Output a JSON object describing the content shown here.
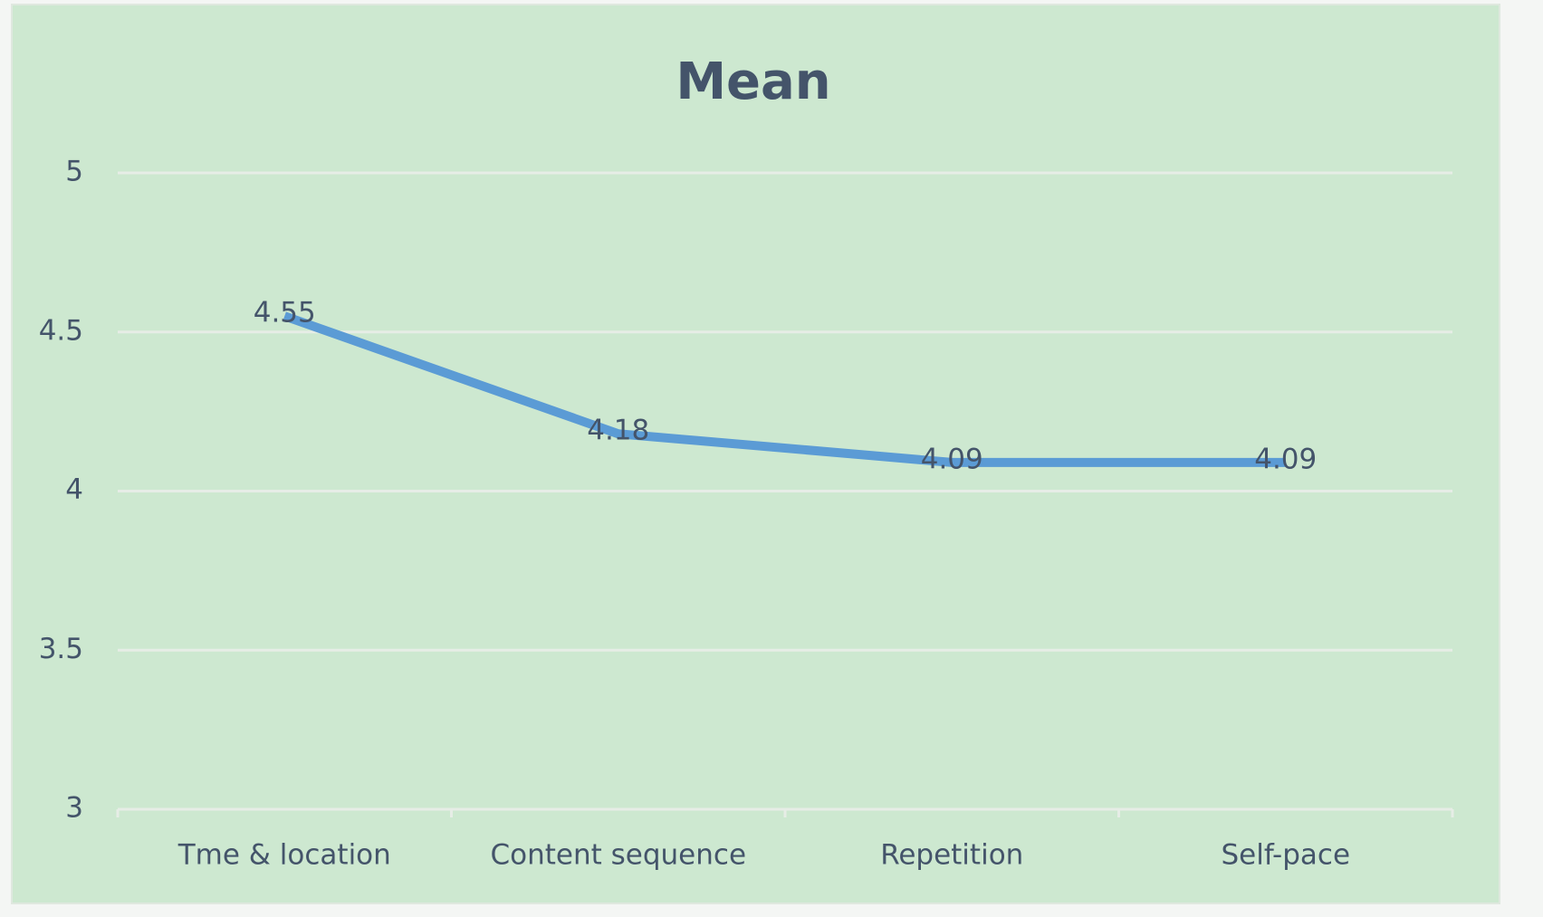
{
  "chart_data": {
    "type": "line",
    "title": "Mean",
    "categories": [
      "Tme & location",
      "Content sequence",
      "Repetition",
      "Self-pace"
    ],
    "series": [
      {
        "name": "Mean",
        "color": "#5b9bd5",
        "values": [
          4.55,
          4.18,
          4.09,
          4.09
        ]
      }
    ],
    "ylim": [
      3,
      5
    ],
    "yticks": [
      3,
      3.5,
      4,
      4.5,
      5
    ],
    "grid": true
  }
}
